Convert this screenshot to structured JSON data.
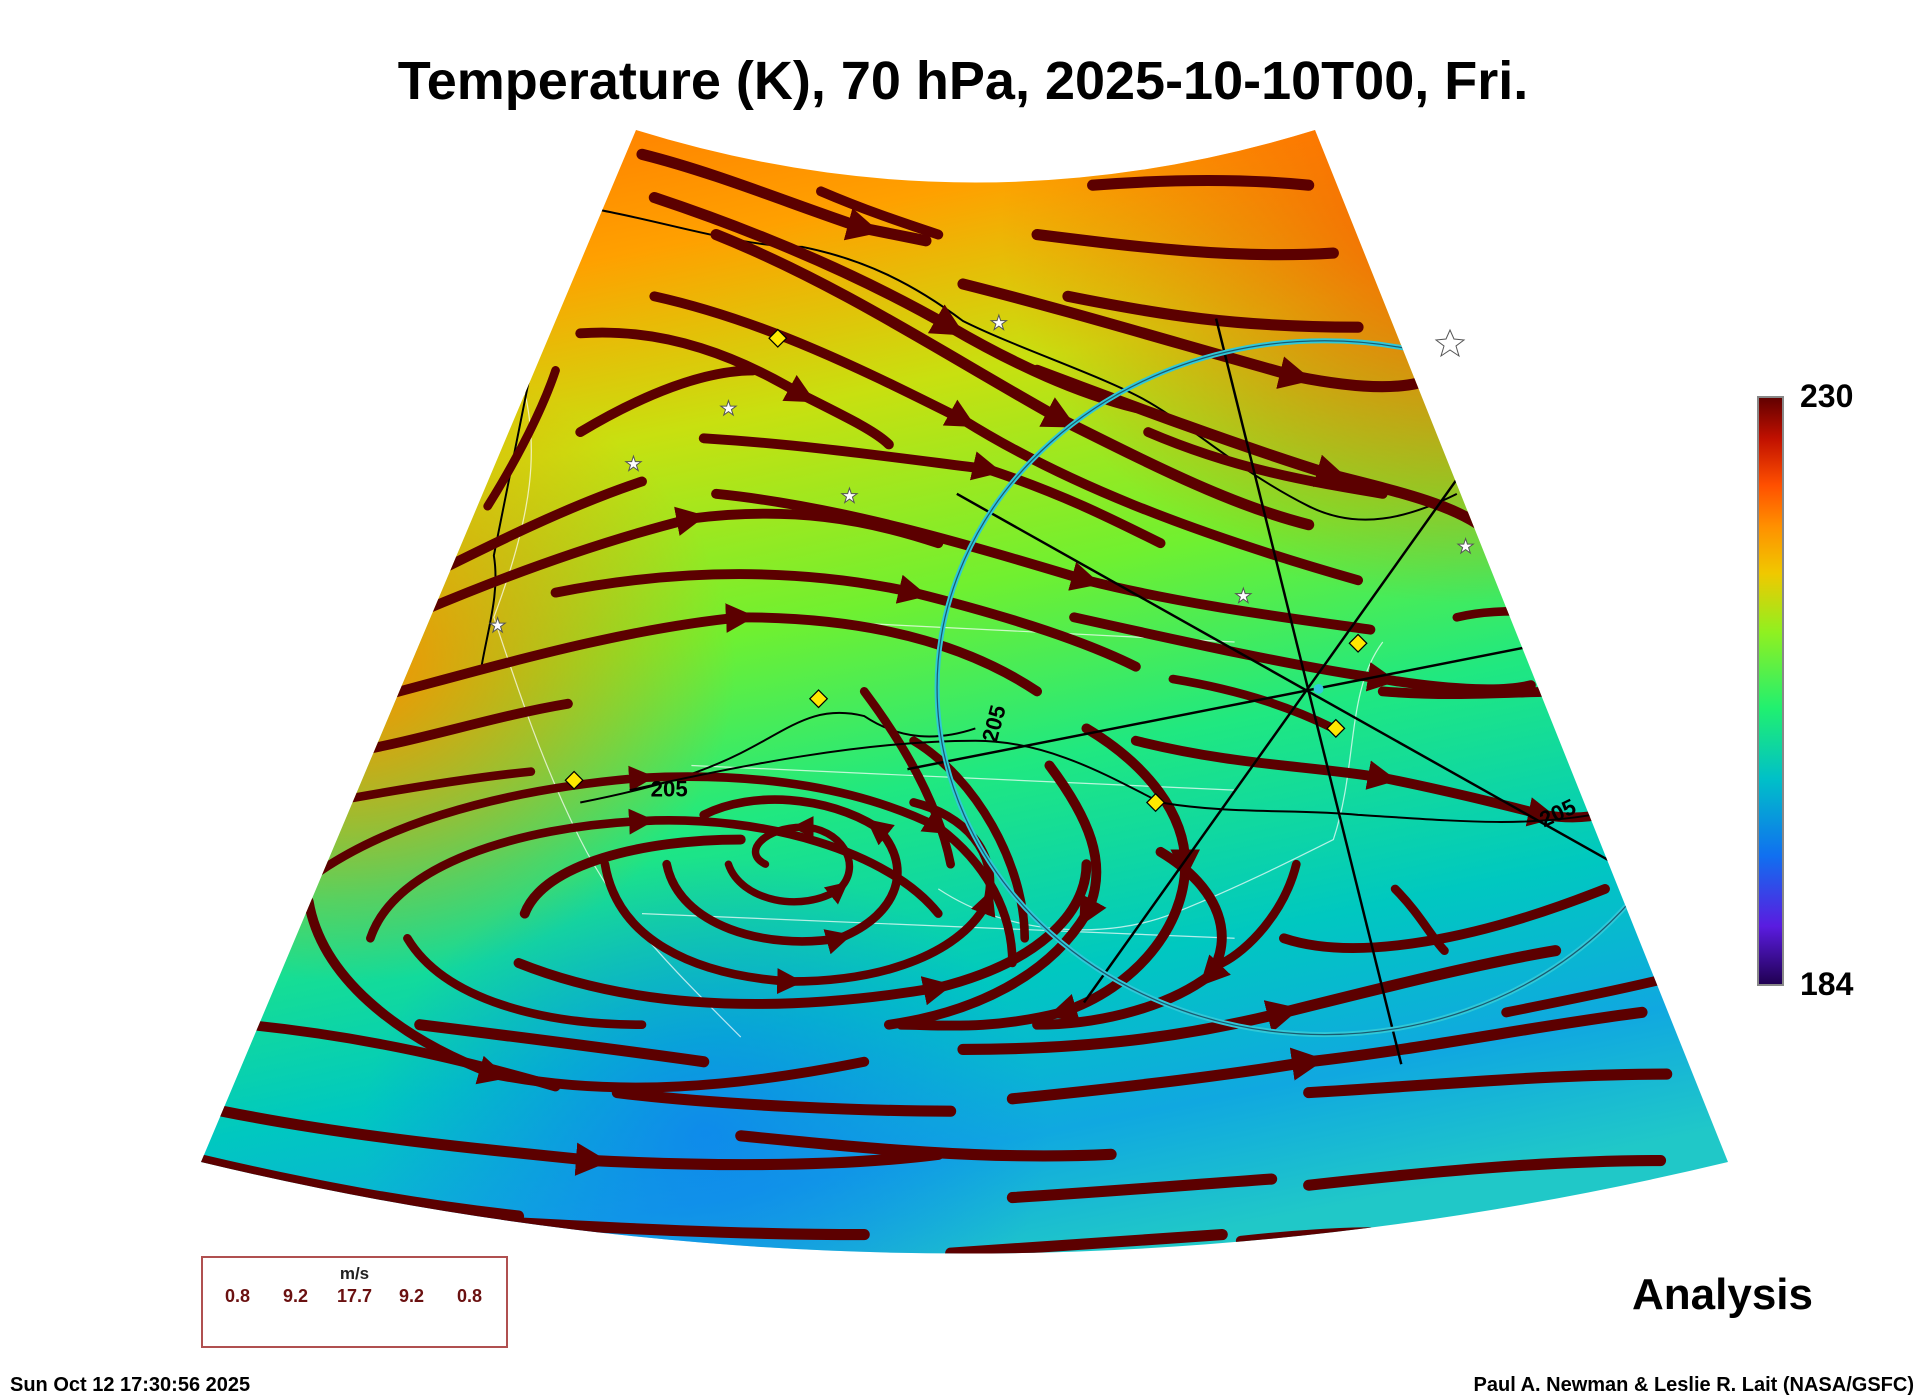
{
  "title": "Temperature (K), 70 hPa, 2025-10-10T00, Fri.",
  "chart_data": {
    "type": "heatmap",
    "title": "Temperature (K), 70 hPa, 2025-10-10T00, Fri.",
    "variable": "Temperature (K)",
    "level": "70 hPa",
    "valid_time": "2025-10-10T00",
    "colorbar": {
      "min": 184,
      "max": 230,
      "min_label": "184",
      "max_label": "230",
      "colors": [
        "#200050",
        "#5a1ce0",
        "#1070f0",
        "#00c0c8",
        "#20f070",
        "#90f020",
        "#f0c800",
        "#ff9000",
        "#ff5000",
        "#c01000",
        "#600000"
      ]
    },
    "contour_labels": [
      "205",
      "205",
      "205"
    ],
    "overlay": "wind streamlines",
    "wind_legend": {
      "unit": "m/s",
      "values": [
        "0.8",
        "9.2",
        "17.7",
        "9.2",
        "0.8"
      ]
    },
    "streamline_color": "#5c0000",
    "ring_color": "#30c8d8"
  },
  "analysis_label": "Analysis",
  "footer": {
    "timestamp": "Sun Oct 12 17:30:56 2025",
    "credit": "Paul A. Newman & Leslie R. Lait (NASA/GSFC)"
  }
}
